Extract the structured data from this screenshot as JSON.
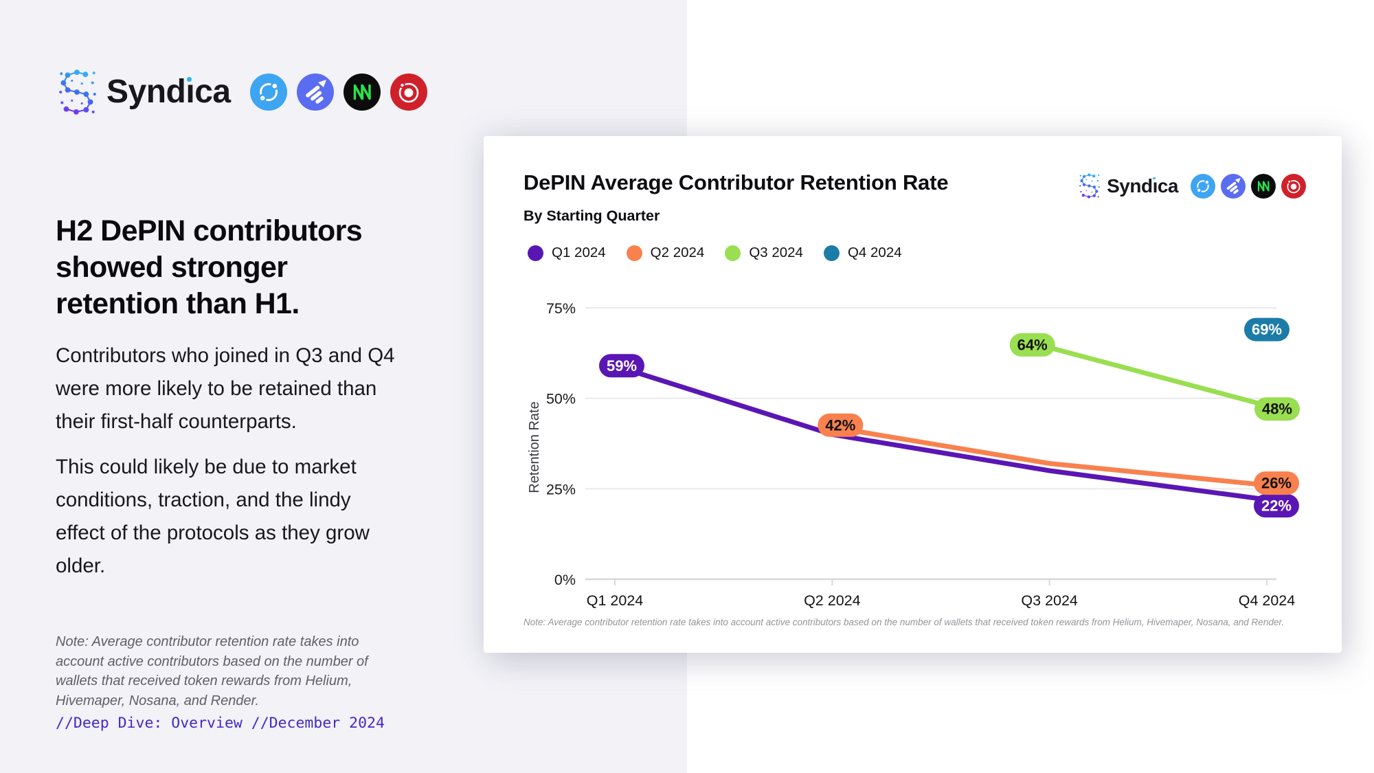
{
  "brand": {
    "name": "Syndica",
    "partners": [
      "helium",
      "hivemapper",
      "nosana",
      "render"
    ],
    "partner_colors": {
      "helium": "#3da5f2",
      "hivemapper": "#5a6cf0",
      "nosana_bg": "#0c0c0c",
      "nosana_accent": "#2be14c",
      "render": "#d0202a"
    },
    "logo_gradient": [
      "#2fbdf5",
      "#3f6ef0",
      "#7b2ff0"
    ],
    "i_dot_color": "#2cb6f3"
  },
  "left_panel": {
    "heading": "H2 DePIN contributors showed stronger retention than H1.",
    "paragraphs": [
      "Contributors who joined in Q3 and Q4 were more likely to be retained than their first-half counterparts.",
      "This could likely be due to market conditions, traction, and the lindy effect of the protocols as they grow older."
    ],
    "note": "Note: Average contributor retention rate takes into account active contributors based on the number of wallets that received token rewards from Helium, Hivemaper, Nosana, and Render.",
    "slug": "//Deep Dive: Overview //December 2024",
    "slug_color": "#4129c8"
  },
  "card": {
    "title": "DePIN Average Contributor Retention Rate",
    "subtitle": "By Starting Quarter",
    "note": "Note: Average contributor retention rate takes into account active contributors based on the number of wallets that received token rewards from Helium, Hivemaper, Nosana, and Render."
  },
  "chart_data": {
    "type": "line",
    "title": "DePIN Average Contributor Retention Rate",
    "subtitle": "By Starting Quarter",
    "categories": [
      "Q1 2024",
      "Q2 2024",
      "Q3 2024",
      "Q4 2024"
    ],
    "xlabel": "",
    "ylabel": "Retention Rate",
    "ylim": [
      0,
      75
    ],
    "yticks": [
      0,
      25,
      50,
      75
    ],
    "ytick_format": "percent",
    "grid": "horizontal",
    "legend_position": "top-left",
    "series": [
      {
        "name": "Q1 2024",
        "color": "#5a16b4",
        "label_text_color": "#ffffff",
        "points": [
          {
            "x": "Q1 2024",
            "value": 59,
            "labeled": true
          },
          {
            "x": "Q2 2024",
            "value": 40,
            "labeled": false
          },
          {
            "x": "Q3 2024",
            "value": 30,
            "labeled": false
          },
          {
            "x": "Q4 2024",
            "value": 22,
            "labeled": true
          }
        ]
      },
      {
        "name": "Q2 2024",
        "color": "#f8814e",
        "label_text_color": "#111111",
        "points": [
          {
            "x": "Q2 2024",
            "value": 42,
            "labeled": true
          },
          {
            "x": "Q3 2024",
            "value": 32,
            "labeled": false
          },
          {
            "x": "Q4 2024",
            "value": 26,
            "labeled": true
          }
        ]
      },
      {
        "name": "Q3 2024",
        "color": "#9ade51",
        "label_text_color": "#111111",
        "points": [
          {
            "x": "Q3 2024",
            "value": 64,
            "labeled": true
          },
          {
            "x": "Q4 2024",
            "value": 48,
            "labeled": true
          }
        ]
      },
      {
        "name": "Q4 2024",
        "color": "#1b7ca8",
        "label_text_color": "#ffffff",
        "points": [
          {
            "x": "Q4 2024",
            "value": 69,
            "labeled": true
          }
        ]
      }
    ]
  }
}
